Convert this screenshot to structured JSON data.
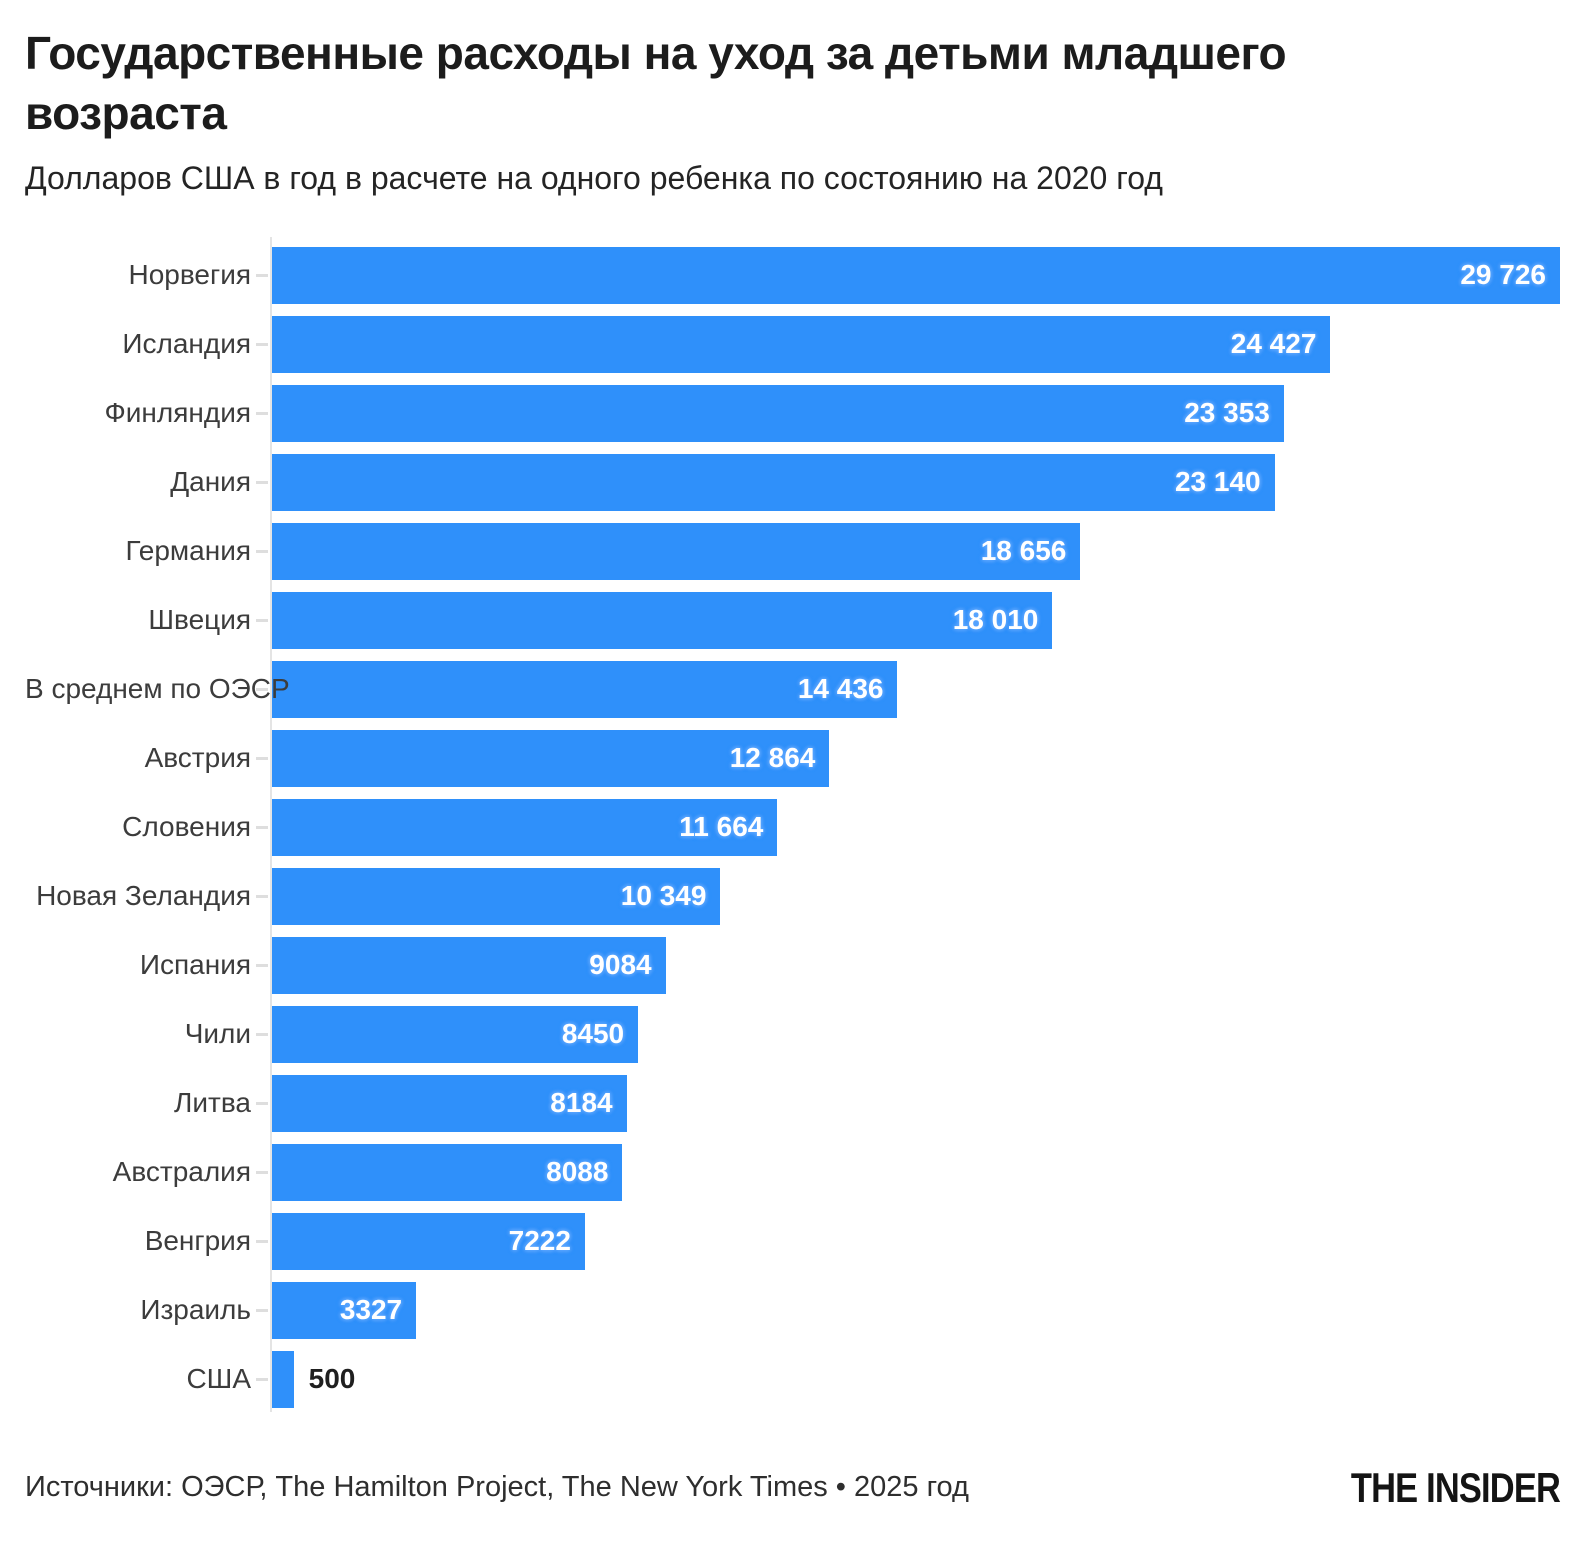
{
  "header": {
    "title": "Государственные расходы на уход за детьми младшего возраста",
    "subtitle": "Долларов США в год в расчете на одного ребенка по состоянию на 2020 год"
  },
  "chart_data": {
    "type": "bar",
    "orientation": "horizontal",
    "title": "Государственные расходы на уход за детьми младшего возраста",
    "subtitle": "Долларов США в год в расчете на одного ребенка по состоянию на 2020 год",
    "categories": [
      "Норвегия",
      "Исландия",
      "Финляндия",
      "Дания",
      "Германия",
      "Швеция",
      "В среднем по ОЭСР",
      "Австрия",
      "Словения",
      "Новая Зеландия",
      "Испания",
      "Чили",
      "Литва",
      "Австралия",
      "Венгрия",
      "Израиль",
      "США"
    ],
    "values": [
      29726,
      24427,
      23353,
      23140,
      18656,
      18010,
      14436,
      12864,
      11664,
      10349,
      9084,
      8450,
      8184,
      8088,
      7222,
      3327,
      500
    ],
    "value_labels": [
      "29 726",
      "24 427",
      "23 353",
      "23 140",
      "18 656",
      "18 010",
      "14 436",
      "12 864",
      "11 664",
      "10 349",
      "9084",
      "8450",
      "8184",
      "8088",
      "7222",
      "3327",
      "500"
    ],
    "xlim": [
      0,
      29726
    ],
    "grid": false,
    "legend": "none",
    "value_label_position": "inside-end",
    "colors": {
      "bar": "#2F90FA",
      "value_label_inside": "#ffffff",
      "value_label_outside": "#1f1f1f",
      "category_label": "#3c3c3c",
      "axis": "#e4e4e4"
    }
  },
  "footer": {
    "source": "Источники: ОЭСР, The Hamilton Project, The New York Times • 2025 год",
    "brand": "THE INSIDER"
  }
}
